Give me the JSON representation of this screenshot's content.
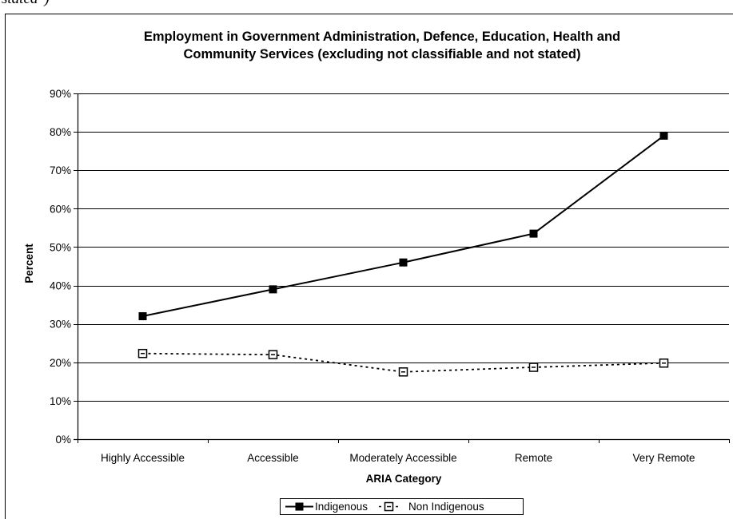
{
  "header_fragment": "stated\")",
  "chart_data": {
    "type": "line",
    "title_lines": [
      "Employment in Government Administration, Defence, Education, Health and",
      "Community Services (excluding not classifiable and not stated)"
    ],
    "xlabel": "ARIA Category",
    "ylabel": "Percent",
    "categories": [
      "Highly Accessible",
      "Accessible",
      "Moderately Accessible",
      "Remote",
      "Very Remote"
    ],
    "ylim": [
      0,
      90
    ],
    "yticks": [
      0,
      10,
      20,
      30,
      40,
      50,
      60,
      70,
      80,
      90
    ],
    "ytick_labels": [
      "0%",
      "10%",
      "20%",
      "30%",
      "40%",
      "50%",
      "60%",
      "70%",
      "80%",
      "90%"
    ],
    "grid": true,
    "legend_position": "bottom",
    "series": [
      {
        "name": "Indigenous",
        "values": [
          32,
          39,
          46,
          53.5,
          79
        ],
        "color": "#000000",
        "line_style": "solid",
        "marker": "filled-square"
      },
      {
        "name": "Non Indigenous",
        "values": [
          22.3,
          22,
          17.5,
          18.7,
          19.8
        ],
        "color": "#000000",
        "line_style": "dotted",
        "marker": "hollow-square"
      }
    ]
  }
}
